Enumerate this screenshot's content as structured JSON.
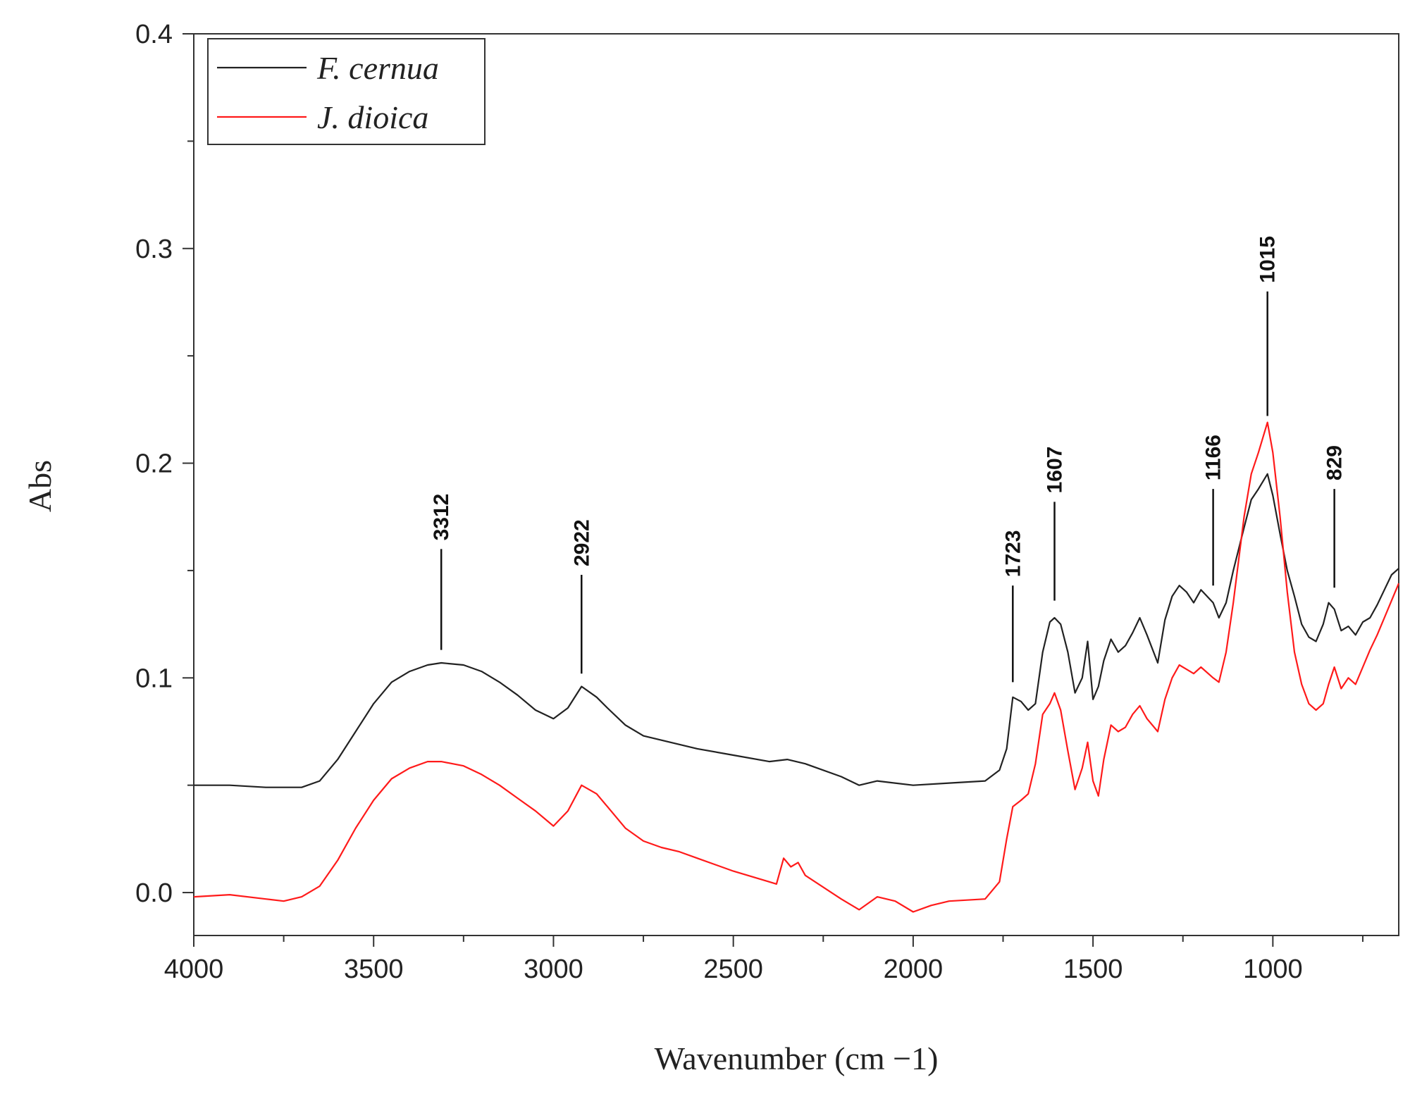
{
  "chart_data": {
    "type": "line",
    "title": "",
    "xlabel": "Wavenumber (cm −1)",
    "ylabel": "Abs",
    "xlim": [
      4000,
      650
    ],
    "ylim": [
      -0.02,
      0.4
    ],
    "x_ticks": [
      4000,
      3500,
      3000,
      2500,
      2000,
      1500,
      1000
    ],
    "x_tick_labels": [
      "4000",
      "3500",
      "3000",
      "2500",
      "2000",
      "1500",
      "1000"
    ],
    "y_ticks": [
      0.0,
      0.1,
      0.2,
      0.3,
      0.4
    ],
    "y_tick_labels": [
      "0.0",
      "0.1",
      "0.2",
      "0.3",
      "0.4"
    ],
    "grid": false,
    "legend_position": "top-left",
    "series": [
      {
        "name": "F. cernua",
        "color": "#222222",
        "points": [
          [
            4000,
            0.05
          ],
          [
            3900,
            0.05
          ],
          [
            3800,
            0.049
          ],
          [
            3700,
            0.049
          ],
          [
            3650,
            0.052
          ],
          [
            3600,
            0.062
          ],
          [
            3550,
            0.075
          ],
          [
            3500,
            0.088
          ],
          [
            3450,
            0.098
          ],
          [
            3400,
            0.103
          ],
          [
            3350,
            0.106
          ],
          [
            3312,
            0.107
          ],
          [
            3250,
            0.106
          ],
          [
            3200,
            0.103
          ],
          [
            3150,
            0.098
          ],
          [
            3100,
            0.092
          ],
          [
            3050,
            0.085
          ],
          [
            3000,
            0.081
          ],
          [
            2960,
            0.086
          ],
          [
            2922,
            0.096
          ],
          [
            2880,
            0.091
          ],
          [
            2850,
            0.086
          ],
          [
            2800,
            0.078
          ],
          [
            2750,
            0.073
          ],
          [
            2700,
            0.071
          ],
          [
            2650,
            0.069
          ],
          [
            2600,
            0.067
          ],
          [
            2500,
            0.064
          ],
          [
            2400,
            0.061
          ],
          [
            2350,
            0.062
          ],
          [
            2300,
            0.06
          ],
          [
            2200,
            0.054
          ],
          [
            2150,
            0.05
          ],
          [
            2100,
            0.052
          ],
          [
            2000,
            0.05
          ],
          [
            1900,
            0.051
          ],
          [
            1800,
            0.052
          ],
          [
            1760,
            0.057
          ],
          [
            1740,
            0.067
          ],
          [
            1723,
            0.091
          ],
          [
            1700,
            0.089
          ],
          [
            1680,
            0.085
          ],
          [
            1660,
            0.088
          ],
          [
            1640,
            0.112
          ],
          [
            1620,
            0.126
          ],
          [
            1607,
            0.128
          ],
          [
            1590,
            0.125
          ],
          [
            1570,
            0.112
          ],
          [
            1550,
            0.093
          ],
          [
            1530,
            0.1
          ],
          [
            1515,
            0.117
          ],
          [
            1500,
            0.09
          ],
          [
            1485,
            0.096
          ],
          [
            1470,
            0.108
          ],
          [
            1450,
            0.118
          ],
          [
            1430,
            0.112
          ],
          [
            1410,
            0.115
          ],
          [
            1390,
            0.121
          ],
          [
            1370,
            0.128
          ],
          [
            1350,
            0.12
          ],
          [
            1320,
            0.107
          ],
          [
            1300,
            0.127
          ],
          [
            1280,
            0.138
          ],
          [
            1260,
            0.143
          ],
          [
            1240,
            0.14
          ],
          [
            1220,
            0.135
          ],
          [
            1200,
            0.141
          ],
          [
            1166,
            0.135
          ],
          [
            1150,
            0.128
          ],
          [
            1130,
            0.135
          ],
          [
            1110,
            0.15
          ],
          [
            1080,
            0.17
          ],
          [
            1060,
            0.183
          ],
          [
            1040,
            0.188
          ],
          [
            1015,
            0.195
          ],
          [
            1000,
            0.185
          ],
          [
            980,
            0.167
          ],
          [
            960,
            0.15
          ],
          [
            940,
            0.138
          ],
          [
            920,
            0.125
          ],
          [
            900,
            0.119
          ],
          [
            880,
            0.117
          ],
          [
            860,
            0.125
          ],
          [
            845,
            0.135
          ],
          [
            829,
            0.132
          ],
          [
            810,
            0.122
          ],
          [
            790,
            0.124
          ],
          [
            770,
            0.12
          ],
          [
            750,
            0.126
          ],
          [
            730,
            0.128
          ],
          [
            710,
            0.134
          ],
          [
            690,
            0.141
          ],
          [
            670,
            0.148
          ],
          [
            650,
            0.151
          ]
        ]
      },
      {
        "name": "J. dioica",
        "color": "#ff1a1a",
        "points": [
          [
            4000,
            -0.002
          ],
          [
            3900,
            -0.001
          ],
          [
            3800,
            -0.003
          ],
          [
            3750,
            -0.004
          ],
          [
            3700,
            -0.002
          ],
          [
            3650,
            0.003
          ],
          [
            3600,
            0.015
          ],
          [
            3550,
            0.03
          ],
          [
            3500,
            0.043
          ],
          [
            3450,
            0.053
          ],
          [
            3400,
            0.058
          ],
          [
            3350,
            0.061
          ],
          [
            3312,
            0.061
          ],
          [
            3250,
            0.059
          ],
          [
            3200,
            0.055
          ],
          [
            3150,
            0.05
          ],
          [
            3100,
            0.044
          ],
          [
            3050,
            0.038
          ],
          [
            3000,
            0.031
          ],
          [
            2960,
            0.038
          ],
          [
            2922,
            0.05
          ],
          [
            2880,
            0.046
          ],
          [
            2850,
            0.04
          ],
          [
            2800,
            0.03
          ],
          [
            2750,
            0.024
          ],
          [
            2700,
            0.021
          ],
          [
            2650,
            0.019
          ],
          [
            2600,
            0.016
          ],
          [
            2500,
            0.01
          ],
          [
            2400,
            0.005
          ],
          [
            2380,
            0.004
          ],
          [
            2360,
            0.016
          ],
          [
            2340,
            0.012
          ],
          [
            2320,
            0.014
          ],
          [
            2300,
            0.008
          ],
          [
            2200,
            -0.003
          ],
          [
            2150,
            -0.008
          ],
          [
            2100,
            -0.002
          ],
          [
            2050,
            -0.004
          ],
          [
            2000,
            -0.009
          ],
          [
            1950,
            -0.006
          ],
          [
            1900,
            -0.004
          ],
          [
            1800,
            -0.003
          ],
          [
            1760,
            0.005
          ],
          [
            1740,
            0.025
          ],
          [
            1723,
            0.04
          ],
          [
            1700,
            0.043
          ],
          [
            1680,
            0.046
          ],
          [
            1660,
            0.06
          ],
          [
            1640,
            0.083
          ],
          [
            1620,
            0.088
          ],
          [
            1607,
            0.093
          ],
          [
            1590,
            0.085
          ],
          [
            1570,
            0.066
          ],
          [
            1550,
            0.048
          ],
          [
            1530,
            0.058
          ],
          [
            1515,
            0.07
          ],
          [
            1500,
            0.052
          ],
          [
            1485,
            0.045
          ],
          [
            1470,
            0.062
          ],
          [
            1450,
            0.078
          ],
          [
            1430,
            0.075
          ],
          [
            1410,
            0.077
          ],
          [
            1390,
            0.083
          ],
          [
            1370,
            0.087
          ],
          [
            1350,
            0.081
          ],
          [
            1320,
            0.075
          ],
          [
            1300,
            0.09
          ],
          [
            1280,
            0.1
          ],
          [
            1260,
            0.106
          ],
          [
            1240,
            0.104
          ],
          [
            1220,
            0.102
          ],
          [
            1200,
            0.105
          ],
          [
            1166,
            0.1
          ],
          [
            1150,
            0.098
          ],
          [
            1130,
            0.112
          ],
          [
            1110,
            0.135
          ],
          [
            1080,
            0.175
          ],
          [
            1060,
            0.195
          ],
          [
            1040,
            0.205
          ],
          [
            1015,
            0.219
          ],
          [
            1000,
            0.205
          ],
          [
            980,
            0.175
          ],
          [
            960,
            0.14
          ],
          [
            940,
            0.112
          ],
          [
            920,
            0.097
          ],
          [
            900,
            0.088
          ],
          [
            880,
            0.085
          ],
          [
            860,
            0.088
          ],
          [
            845,
            0.097
          ],
          [
            829,
            0.105
          ],
          [
            810,
            0.095
          ],
          [
            790,
            0.1
          ],
          [
            770,
            0.097
          ],
          [
            750,
            0.105
          ],
          [
            730,
            0.113
          ],
          [
            710,
            0.12
          ],
          [
            690,
            0.128
          ],
          [
            670,
            0.136
          ],
          [
            650,
            0.144
          ]
        ]
      }
    ],
    "annotations": [
      {
        "label": "3312",
        "x": 3312,
        "y_low": 0.113,
        "y_high": 0.16
      },
      {
        "label": "2922",
        "x": 2922,
        "y_low": 0.102,
        "y_high": 0.148
      },
      {
        "label": "1723",
        "x": 1723,
        "y_low": 0.098,
        "y_high": 0.143
      },
      {
        "label": "1607",
        "x": 1607,
        "y_low": 0.136,
        "y_high": 0.182
      },
      {
        "label": "1166",
        "x": 1166,
        "y_low": 0.143,
        "y_high": 0.188
      },
      {
        "label": "1015",
        "x": 1015,
        "y_low": 0.222,
        "y_high": 0.28
      },
      {
        "label": "829",
        "x": 829,
        "y_low": 0.142,
        "y_high": 0.188
      }
    ]
  }
}
